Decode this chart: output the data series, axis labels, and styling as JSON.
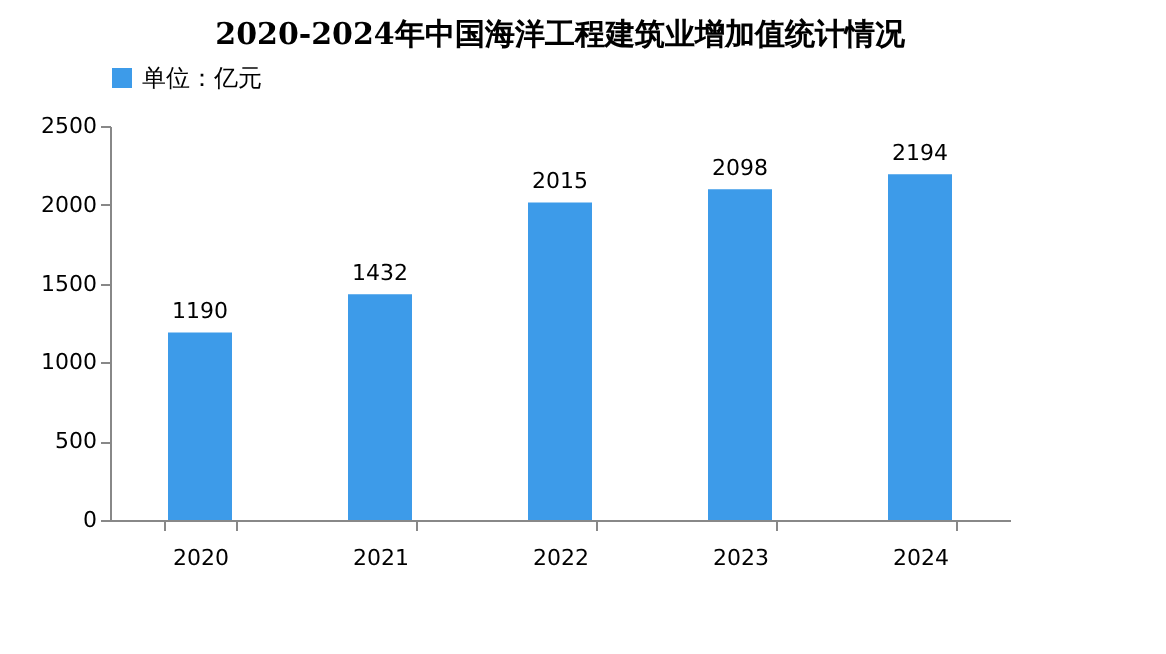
{
  "chart_data": {
    "type": "bar",
    "title": "2020-2024年中国海洋工程建筑业增加值统计情况",
    "categories": [
      "2020",
      "2021",
      "2022",
      "2023",
      "2024"
    ],
    "series": [
      {
        "name": "单位：亿元",
        "color": "#3d9be9",
        "values": [
          1190,
          1432,
          2015,
          2098,
          2194
        ]
      }
    ],
    "ylim": [
      0,
      2500
    ],
    "yticks": [
      0,
      500,
      1000,
      1500,
      2000,
      2500
    ],
    "grid": false,
    "legend": "top",
    "data_labels": true
  }
}
